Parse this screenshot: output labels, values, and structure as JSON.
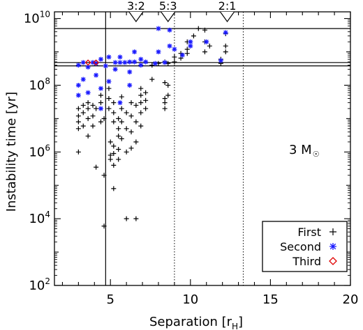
{
  "chart_data": {
    "type": "scatter",
    "xlabel": "Separation [r",
    "xlabel_sub": "H",
    "xlabel_close": "]",
    "ylabel": "Instability time [yr]",
    "xlim": [
      1.5,
      20
    ],
    "ylim_log10": [
      2,
      10.2
    ],
    "y_scale": "log",
    "x_ticks": [
      5,
      10,
      15,
      20
    ],
    "y_ticks": [
      {
        "value": 100,
        "base": "10",
        "exp": "2"
      },
      {
        "value": 10000,
        "base": "10",
        "exp": "4"
      },
      {
        "value": 1000000,
        "base": "10",
        "exp": "6"
      },
      {
        "value": 100000000,
        "base": "10",
        "exp": "8"
      },
      {
        "value": 10000000000,
        "base": "10",
        "exp": "10"
      }
    ],
    "annotation": {
      "text": "3 M",
      "symbol": "☉",
      "position": "right-middle"
    },
    "resonances": [
      {
        "label": "3:2",
        "x": 6.6
      },
      {
        "label": "5:3",
        "x": 8.6
      },
      {
        "label": "2:1",
        "x": 12.3
      }
    ],
    "reference_lines": {
      "horizontal_y": [
        5000000000,
        480000000,
        380000000
      ],
      "vertical_solid_x": [
        4.7
      ],
      "vertical_dotted_x": [
        9.0,
        13.3
      ]
    },
    "legend": {
      "position": "bottom-right",
      "entries": [
        {
          "label": "First",
          "marker": "+",
          "color": "#000000"
        },
        {
          "label": "Second",
          "marker": "*",
          "color": "#1a1aff"
        },
        {
          "label": "Third",
          "marker": "diamond",
          "color": "#e00000"
        }
      ]
    },
    "series": [
      {
        "name": "First",
        "color": "#000000",
        "marker": "plus",
        "points": [
          [
            3.0,
            1000000
          ],
          [
            3.0,
            20000000
          ],
          [
            3.0,
            12000000
          ],
          [
            3.0,
            8000000
          ],
          [
            3.0,
            5000000
          ],
          [
            3.3,
            25000000
          ],
          [
            3.3,
            15000000
          ],
          [
            3.3,
            6000000
          ],
          [
            3.6,
            30000000
          ],
          [
            3.6,
            20000000
          ],
          [
            3.6,
            10000000
          ],
          [
            3.6,
            3000000
          ],
          [
            3.9,
            25000000
          ],
          [
            3.9,
            12000000
          ],
          [
            3.9,
            6000000
          ],
          [
            4.1,
            350000
          ],
          [
            4.1,
            20000000
          ],
          [
            4.4,
            50000000
          ],
          [
            4.4,
            30000000
          ],
          [
            4.4,
            8000000
          ],
          [
            4.6,
            6000
          ],
          [
            4.6,
            200000
          ],
          [
            4.6,
            10000000
          ],
          [
            4.9,
            80000000
          ],
          [
            4.9,
            40000000
          ],
          [
            4.9,
            20000000
          ],
          [
            5.0,
            2000000
          ],
          [
            5.0,
            800000
          ],
          [
            5.0,
            600000
          ],
          [
            5.2,
            30000000
          ],
          [
            5.2,
            15000000
          ],
          [
            5.2,
            8000000
          ],
          [
            5.2,
            1500000
          ],
          [
            5.2,
            900000
          ],
          [
            5.2,
            400000
          ],
          [
            5.2,
            80000
          ],
          [
            5.5,
            10000000
          ],
          [
            5.5,
            5000000
          ],
          [
            5.5,
            3000000
          ],
          [
            5.5,
            1200000
          ],
          [
            5.5,
            600000
          ],
          [
            5.7,
            45000000
          ],
          [
            5.7,
            20000000
          ],
          [
            5.7,
            8000000
          ],
          [
            5.7,
            2500000
          ],
          [
            6.0,
            15000000
          ],
          [
            6.0,
            5000000
          ],
          [
            6.0,
            1000000
          ],
          [
            6.0,
            10000
          ],
          [
            6.3,
            30000000
          ],
          [
            6.3,
            12000000
          ],
          [
            6.3,
            4000000
          ],
          [
            6.3,
            1300000
          ],
          [
            6.6,
            25000000
          ],
          [
            6.6,
            8000000
          ],
          [
            6.6,
            2000000
          ],
          [
            6.6,
            10000
          ],
          [
            6.9,
            80000000
          ],
          [
            6.9,
            50000000
          ],
          [
            6.9,
            30000000
          ],
          [
            6.9,
            15000000
          ],
          [
            6.9,
            6000000
          ],
          [
            7.2,
            60000000
          ],
          [
            7.2,
            35000000
          ],
          [
            7.2,
            20000000
          ],
          [
            7.6,
            400000000
          ],
          [
            7.6,
            150000000
          ],
          [
            8.0,
            450000000
          ],
          [
            8.4,
            500000000
          ],
          [
            8.4,
            120000000
          ],
          [
            8.4,
            40000000
          ],
          [
            8.4,
            30000000
          ],
          [
            8.4,
            20000000
          ],
          [
            8.6,
            450000000
          ],
          [
            8.6,
            100000000
          ],
          [
            8.6,
            50000000
          ],
          [
            9.0,
            700000000
          ],
          [
            9.0,
            500000000
          ],
          [
            9.4,
            900000000
          ],
          [
            9.4,
            650000000
          ],
          [
            9.8,
            2000000000
          ],
          [
            9.8,
            1200000000
          ],
          [
            9.8,
            900000000
          ],
          [
            10.2,
            3000000000
          ],
          [
            10.5,
            5000000000
          ],
          [
            10.9,
            4500000000
          ],
          [
            10.9,
            2000000000
          ],
          [
            10.9,
            1000000000
          ],
          [
            11.2,
            1500000000
          ],
          [
            11.9,
            600000000
          ],
          [
            11.9,
            450000000
          ],
          [
            12.2,
            1500000000
          ],
          [
            12.2,
            1000000000
          ],
          [
            12.2,
            3500000000
          ]
        ]
      },
      {
        "name": "Second",
        "color": "#1a1aff",
        "marker": "star",
        "points": [
          [
            3.0,
            400000000
          ],
          [
            3.0,
            100000000
          ],
          [
            3.0,
            50000000
          ],
          [
            3.3,
            480000000
          ],
          [
            3.3,
            150000000
          ],
          [
            3.6,
            350000000
          ],
          [
            3.6,
            60000000
          ],
          [
            3.9,
            480000000
          ],
          [
            4.1,
            450000000
          ],
          [
            4.1,
            200000000
          ],
          [
            4.4,
            600000000
          ],
          [
            4.4,
            80000000
          ],
          [
            4.4,
            20000000
          ],
          [
            4.7,
            380000000
          ],
          [
            4.9,
            700000000
          ],
          [
            4.9,
            130000000
          ],
          [
            5.3,
            480000000
          ],
          [
            5.3,
            300000000
          ],
          [
            5.6,
            700000000
          ],
          [
            5.6,
            480000000
          ],
          [
            5.6,
            30000000
          ],
          [
            5.9,
            480000000
          ],
          [
            6.2,
            500000000
          ],
          [
            6.2,
            250000000
          ],
          [
            6.2,
            100000000
          ],
          [
            6.5,
            1000000000
          ],
          [
            6.5,
            500000000
          ],
          [
            6.9,
            600000000
          ],
          [
            6.9,
            400000000
          ],
          [
            7.2,
            500000000
          ],
          [
            7.8,
            450000000
          ],
          [
            8.0,
            5000000000
          ],
          [
            8.0,
            1000000000
          ],
          [
            8.4,
            480000000
          ],
          [
            8.7,
            4500000000
          ],
          [
            8.7,
            1500000000
          ],
          [
            9.0,
            1200000000
          ],
          [
            9.5,
            800000000
          ],
          [
            10.0,
            1500000000
          ],
          [
            10.0,
            2000000000
          ],
          [
            11.0,
            2000000000
          ],
          [
            11.9,
            550000000
          ],
          [
            12.2,
            3800000000
          ]
        ]
      },
      {
        "name": "Third",
        "color": "#e00000",
        "marker": "diamond",
        "points": [
          [
            3.6,
            480000000
          ],
          [
            4.1,
            480000000
          ]
        ]
      }
    ]
  }
}
